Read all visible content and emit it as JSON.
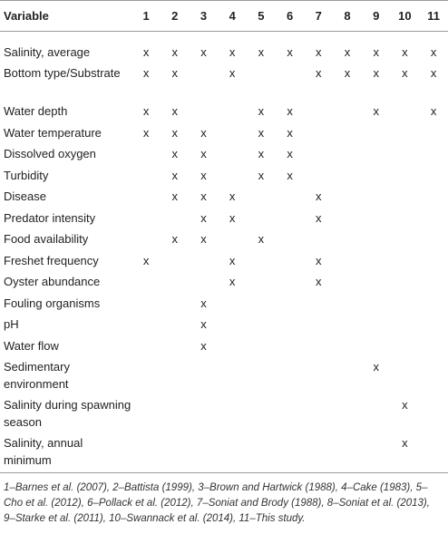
{
  "header": {
    "variable_label": "Variable",
    "studies": [
      "1",
      "2",
      "3",
      "4",
      "5",
      "6",
      "7",
      "8",
      "9",
      "10",
      "11"
    ]
  },
  "rows": [
    {
      "label": "Salinity, average",
      "marks": [
        "x",
        "x",
        "x",
        "x",
        "x",
        "x",
        "x",
        "x",
        "x",
        "x",
        "x"
      ]
    },
    {
      "label": "Bottom type/Substrate",
      "marks": [
        "x",
        "x",
        "",
        "x",
        "",
        "",
        "x",
        "x",
        "x",
        "x",
        "x"
      ]
    },
    {
      "label": "Water depth",
      "marks": [
        "x",
        "x",
        "",
        "",
        "x",
        "x",
        "",
        "",
        "x",
        "",
        "x"
      ]
    },
    {
      "label": "Water temperature",
      "marks": [
        "x",
        "x",
        "x",
        "",
        "x",
        "x",
        "",
        "",
        "",
        "",
        ""
      ]
    },
    {
      "label": "Dissolved oxygen",
      "marks": [
        "",
        "x",
        "x",
        "",
        "x",
        "x",
        "",
        "",
        "",
        "",
        ""
      ]
    },
    {
      "label": "Turbidity",
      "marks": [
        "",
        "x",
        "x",
        "",
        "x",
        "x",
        "",
        "",
        "",
        "",
        ""
      ]
    },
    {
      "label": "Disease",
      "marks": [
        "",
        "x",
        "x",
        "x",
        "",
        "",
        "x",
        "",
        "",
        "",
        ""
      ]
    },
    {
      "label": "Predator intensity",
      "marks": [
        "",
        "",
        "x",
        "x",
        "",
        "",
        "x",
        "",
        "",
        "",
        ""
      ]
    },
    {
      "label": "Food availability",
      "marks": [
        "",
        "x",
        "x",
        "",
        "x",
        "",
        "",
        "",
        "",
        "",
        ""
      ]
    },
    {
      "label": "Freshet frequency",
      "marks": [
        "x",
        "",
        "",
        "x",
        "",
        "",
        "x",
        "",
        "",
        "",
        ""
      ]
    },
    {
      "label": "Oyster abundance",
      "marks": [
        "",
        "",
        "",
        "x",
        "",
        "",
        "x",
        "",
        "",
        "",
        ""
      ]
    },
    {
      "label": "Fouling organisms",
      "marks": [
        "",
        "",
        "x",
        "",
        "",
        "",
        "",
        "",
        "",
        "",
        ""
      ]
    },
    {
      "label": "pH",
      "marks": [
        "",
        "",
        "x",
        "",
        "",
        "",
        "",
        "",
        "",
        "",
        ""
      ]
    },
    {
      "label": "Water flow",
      "marks": [
        "",
        "",
        "x",
        "",
        "",
        "",
        "",
        "",
        "",
        "",
        ""
      ]
    },
    {
      "label": "Sedimentary environment",
      "marks": [
        "",
        "",
        "",
        "",
        "",
        "",
        "",
        "",
        "x",
        "",
        ""
      ]
    },
    {
      "label": "Salinity during spawning season",
      "marks": [
        "",
        "",
        "",
        "",
        "",
        "",
        "",
        "",
        "",
        "x",
        ""
      ]
    },
    {
      "label": "Salinity, annual minimum",
      "marks": [
        "",
        "",
        "",
        "",
        "",
        "",
        "",
        "",
        "",
        "x",
        ""
      ]
    }
  ],
  "footnote": [
    {
      "n": "1",
      "ref": "Barnes et al. (2007)"
    },
    {
      "n": "2",
      "ref": "Battista (1999)"
    },
    {
      "n": "3",
      "ref": "Brown and Hartwick (1988)"
    },
    {
      "n": "4",
      "ref": "Cake (1983)"
    },
    {
      "n": "5",
      "ref": "Cho et al. (2012)"
    },
    {
      "n": "6",
      "ref": "Pollack et al. (2012)"
    },
    {
      "n": "7",
      "ref": "Soniat and Brody (1988)"
    },
    {
      "n": "8",
      "ref": "Soniat et al. (2013)"
    },
    {
      "n": "9",
      "ref": "Starke et al. (2011)"
    },
    {
      "n": "10",
      "ref": "Swannack et al. (2014)"
    },
    {
      "n": "11",
      "ref": "This study."
    }
  ]
}
